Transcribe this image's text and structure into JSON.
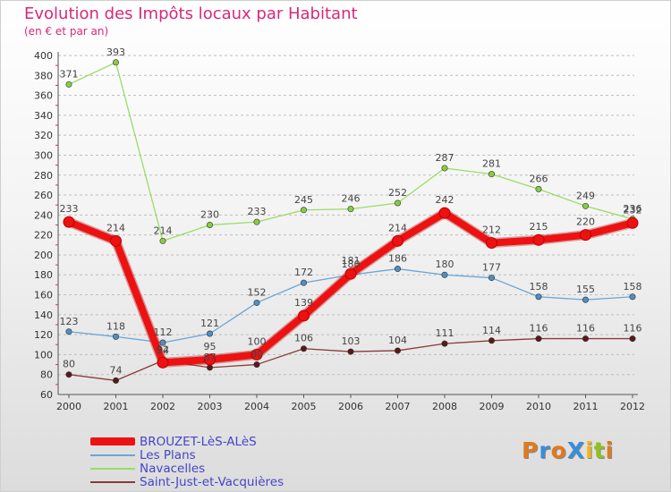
{
  "header": {
    "title": "Evolution des Impôts locaux par Habitant",
    "subtitle": "(en € et par an)"
  },
  "logo": {
    "text": "ProXiti",
    "letter_colors": [
      "#e07a1f",
      "#3a8ed8",
      "#e07a1f",
      "#3a8ed8",
      "#f2b51a",
      "#8fc21e",
      "#e07a1f"
    ]
  },
  "chart_data": {
    "type": "line",
    "title": "Evolution des Impôts locaux par Habitant",
    "subtitle": "(en € et par an)",
    "xlabel": "",
    "ylabel": "",
    "x": [
      "2000",
      "2001",
      "2002",
      "2003",
      "2004",
      "2005",
      "2006",
      "2007",
      "2008",
      "2009",
      "2010",
      "2011",
      "2012"
    ],
    "ylim": [
      60,
      400
    ],
    "yticks": [
      60,
      80,
      100,
      120,
      140,
      160,
      180,
      200,
      220,
      240,
      260,
      280,
      300,
      320,
      340,
      360,
      380,
      400
    ],
    "grid": "horizontal dashed",
    "legend_position": "bottom-left",
    "series": [
      {
        "name": "Navacelles",
        "color": "#99dd66",
        "marker_color": "#88cc44",
        "values": [
          371,
          393,
          214,
          230,
          233,
          245,
          246,
          252,
          287,
          281,
          266,
          249,
          236
        ],
        "labels": [
          "371",
          "393",
          "214",
          "230",
          "233",
          "245",
          "246",
          "252",
          "287",
          "281",
          "266",
          "249",
          "236"
        ]
      },
      {
        "name": "Les Plans",
        "color": "#6aa6d6",
        "marker_color": "#4f8fc4",
        "values": [
          123,
          118,
          112,
          121,
          152,
          172,
          180,
          186,
          180,
          177,
          158,
          155,
          158
        ],
        "labels": [
          "123",
          "118",
          "112",
          "121",
          "152",
          "172",
          "180",
          "186",
          "180",
          "177",
          "158",
          "155",
          "158"
        ]
      },
      {
        "name": "Saint-Just-et-Vacquières",
        "color": "#8b3a3a",
        "marker_color": "#5a1818",
        "values": [
          80,
          74,
          94,
          87,
          90,
          106,
          103,
          104,
          111,
          114,
          116,
          116,
          116
        ],
        "labels": [
          "80",
          "74",
          "94",
          "87",
          "90",
          "106",
          "103",
          "104",
          "111",
          "114",
          "116",
          "116",
          "116"
        ]
      },
      {
        "name": "BROUZET-LèS-ALèS",
        "color": "#ee1111",
        "marker_color": "#ee1111",
        "highlight": true,
        "values": [
          233,
          214,
          92,
          95,
          100,
          139,
          181,
          214,
          242,
          212,
          215,
          220,
          232
        ],
        "labels": [
          "233",
          "214",
          "92",
          "95",
          "100",
          "139",
          "181",
          "214",
          "242",
          "212",
          "215",
          "220",
          "232"
        ]
      }
    ],
    "legend_order": [
      "BROUZET-LèS-ALèS",
      "Les Plans",
      "Navacelles",
      "Saint-Just-et-Vacquières"
    ]
  }
}
